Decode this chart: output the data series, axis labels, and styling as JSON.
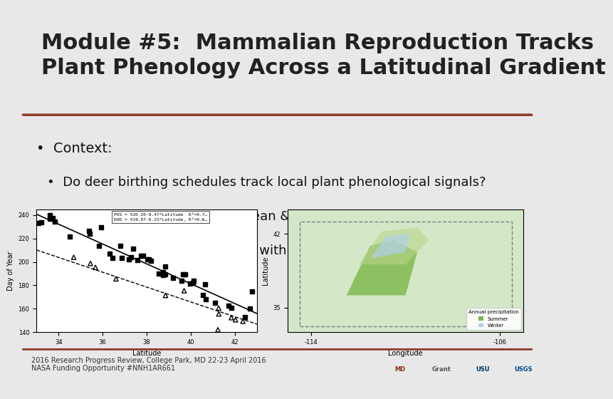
{
  "bg_color": "#f0f0f0",
  "title_bar_color": "#c0c0c0",
  "title_text": "Module #5:  Mammalian Reproduction Tracks\nPlant Phenology Across a Latitudinal Gradient",
  "title_color": "#222222",
  "title_fontsize": 22,
  "divider_color": "#8B3A2A",
  "bullet_main": "Context:",
  "bullets": [
    "Do deer birthing schedules track local plant phenological signals?",
    "Which month best predicts mean &variance in juvenile production?",
    "Does juvenile production vary with timing and form of precipitation?"
  ],
  "bullet_fontsize": 13,
  "footer_text": "2016 Research Progress Review, College Park, MD 22-23 April 2016\nNASA Funding Opportunity #NNH1AR661",
  "footer_fontsize": 7,
  "footer_bar_color": "#8B3A2A",
  "content_bg": "#ffffff",
  "slide_bg": "#e8e8e8"
}
